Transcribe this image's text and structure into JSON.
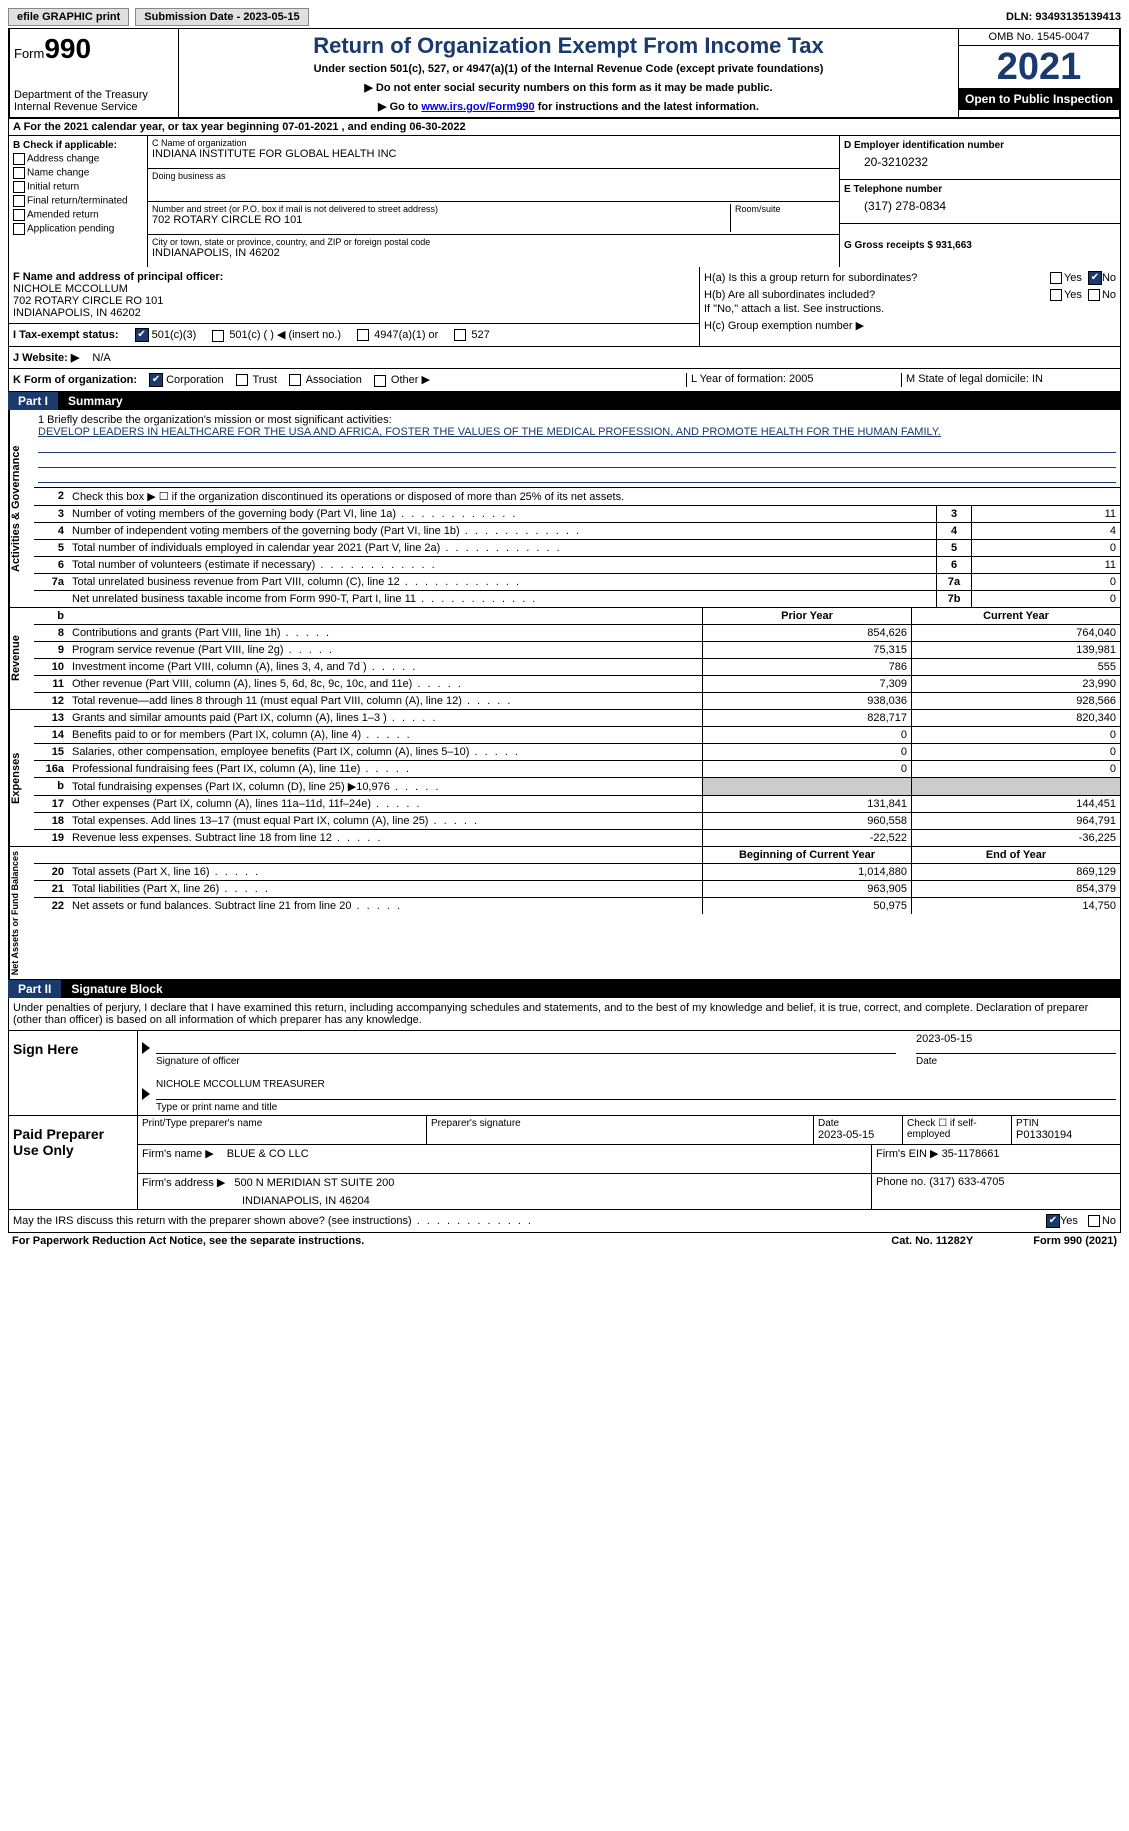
{
  "topbar": {
    "efile_label": "efile GRAPHIC print",
    "submission_label": "Submission Date - 2023-05-15",
    "dln_label": "DLN: 93493135139413"
  },
  "header": {
    "form_prefix": "Form",
    "form_number": "990",
    "dept": "Department of the Treasury Internal Revenue Service",
    "title": "Return of Organization Exempt From Income Tax",
    "subtitle1": "Under section 501(c), 527, or 4947(a)(1) of the Internal Revenue Code (except private foundations)",
    "subtitle2": "▶ Do not enter social security numbers on this form as it may be made public.",
    "subtitle3_pre": "▶ Go to ",
    "subtitle3_link": "www.irs.gov/Form990",
    "subtitle3_post": " for instructions and the latest information.",
    "omb": "OMB No. 1545-0047",
    "year": "2021",
    "inspection": "Open to Public Inspection"
  },
  "row_a": {
    "text": "A For the 2021 calendar year, or tax year beginning 07-01-2021    , and ending 06-30-2022"
  },
  "col_b": {
    "header": "B Check if applicable:",
    "items": [
      "Address change",
      "Name change",
      "Initial return",
      "Final return/terminated",
      "Amended return",
      "Application pending"
    ]
  },
  "col_c": {
    "name_label": "C Name of organization",
    "name_value": "INDIANA INSTITUTE FOR GLOBAL HEALTH INC",
    "dba_label": "Doing business as",
    "addr_label": "Number and street (or P.O. box if mail is not delivered to street address)",
    "addr_value": "702 ROTARY CIRCLE RO 101",
    "room_label": "Room/suite",
    "city_label": "City or town, state or province, country, and ZIP or foreign postal code",
    "city_value": "INDIANAPOLIS, IN  46202"
  },
  "col_d": {
    "ein_label": "D Employer identification number",
    "ein_value": "20-3210232",
    "phone_label": "E Telephone number",
    "phone_value": "(317) 278-0834",
    "gross_label": "G Gross receipts $ 931,663"
  },
  "f_block": {
    "f_label": "F Name and address of principal officer:",
    "f_name": "NICHOLE MCCOLLUM",
    "f_addr1": "702 ROTARY CIRCLE RO 101",
    "f_addr2": "INDIANAPOLIS, IN  46202",
    "i_label": "I   Tax-exempt status:",
    "i_501c3": "501(c)(3)",
    "i_501c": "501(c) (  ) ◀ (insert no.)",
    "i_4947": "4947(a)(1) or",
    "i_527": "527",
    "j_label": "J   Website: ▶",
    "j_value": "N/A"
  },
  "h_block": {
    "ha_label": "H(a)  Is this a group return for subordinates?",
    "hb_label": "H(b)  Are all subordinates included?",
    "hb_note": "If \"No,\" attach a list. See instructions.",
    "hc_label": "H(c)  Group exemption number ▶",
    "yes": "Yes",
    "no": "No"
  },
  "k_row": {
    "k_label": "K Form of organization:",
    "corp": "Corporation",
    "trust": "Trust",
    "assoc": "Association",
    "other": "Other ▶",
    "l_label": "L Year of formation: 2005",
    "m_label": "M State of legal domicile: IN"
  },
  "part1": {
    "num": "Part I",
    "title": "Summary"
  },
  "summary": {
    "line1_label": "1   Briefly describe the organization's mission or most significant activities:",
    "line1_text": "DEVELOP LEADERS IN HEALTHCARE FOR THE USA AND AFRICA, FOSTER THE VALUES OF THE MEDICAL PROFESSION, AND PROMOTE HEALTH FOR THE HUMAN FAMILY.",
    "line2": "Check this box ▶ ☐  if the organization discontinued its operations or disposed of more than 25% of its net assets.",
    "sections": {
      "governance": "Activities & Governance",
      "revenue": "Revenue",
      "expenses": "Expenses",
      "netassets": "Net Assets or Fund Balances"
    },
    "rows_top": [
      {
        "n": "3",
        "t": "Number of voting members of the governing body (Part VI, line 1a)",
        "b": "3",
        "v": "11"
      },
      {
        "n": "4",
        "t": "Number of independent voting members of the governing body (Part VI, line 1b)",
        "b": "4",
        "v": "4"
      },
      {
        "n": "5",
        "t": "Total number of individuals employed in calendar year 2021 (Part V, line 2a)",
        "b": "5",
        "v": "0"
      },
      {
        "n": "6",
        "t": "Total number of volunteers (estimate if necessary)",
        "b": "6",
        "v": "11"
      },
      {
        "n": "7a",
        "t": "Total unrelated business revenue from Part VIII, column (C), line 12",
        "b": "7a",
        "v": "0"
      },
      {
        "n": "",
        "t": "Net unrelated business taxable income from Form 990-T, Part I, line 11",
        "b": "7b",
        "v": "0"
      }
    ],
    "col_headers": {
      "b": "b",
      "prior": "Prior Year",
      "current": "Current Year"
    },
    "rows_rev": [
      {
        "n": "8",
        "t": "Contributions and grants (Part VIII, line 1h)",
        "p": "854,626",
        "c": "764,040"
      },
      {
        "n": "9",
        "t": "Program service revenue (Part VIII, line 2g)",
        "p": "75,315",
        "c": "139,981"
      },
      {
        "n": "10",
        "t": "Investment income (Part VIII, column (A), lines 3, 4, and 7d )",
        "p": "786",
        "c": "555"
      },
      {
        "n": "11",
        "t": "Other revenue (Part VIII, column (A), lines 5, 6d, 8c, 9c, 10c, and 11e)",
        "p": "7,309",
        "c": "23,990"
      },
      {
        "n": "12",
        "t": "Total revenue—add lines 8 through 11 (must equal Part VIII, column (A), line 12)",
        "p": "938,036",
        "c": "928,566"
      }
    ],
    "rows_exp": [
      {
        "n": "13",
        "t": "Grants and similar amounts paid (Part IX, column (A), lines 1–3 )",
        "p": "828,717",
        "c": "820,340"
      },
      {
        "n": "14",
        "t": "Benefits paid to or for members (Part IX, column (A), line 4)",
        "p": "0",
        "c": "0"
      },
      {
        "n": "15",
        "t": "Salaries, other compensation, employee benefits (Part IX, column (A), lines 5–10)",
        "p": "0",
        "c": "0"
      },
      {
        "n": "16a",
        "t": "Professional fundraising fees (Part IX, column (A), line 11e)",
        "p": "0",
        "c": "0"
      },
      {
        "n": "b",
        "t": "Total fundraising expenses (Part IX, column (D), line 25) ▶10,976",
        "p": "",
        "c": "",
        "shaded": true
      },
      {
        "n": "17",
        "t": "Other expenses (Part IX, column (A), lines 11a–11d, 11f–24e)",
        "p": "131,841",
        "c": "144,451"
      },
      {
        "n": "18",
        "t": "Total expenses. Add lines 13–17 (must equal Part IX, column (A), line 25)",
        "p": "960,558",
        "c": "964,791"
      },
      {
        "n": "19",
        "t": "Revenue less expenses. Subtract line 18 from line 12",
        "p": "-22,522",
        "c": "-36,225"
      }
    ],
    "col_headers2": {
      "prior": "Beginning of Current Year",
      "current": "End of Year"
    },
    "rows_net": [
      {
        "n": "20",
        "t": "Total assets (Part X, line 16)",
        "p": "1,014,880",
        "c": "869,129"
      },
      {
        "n": "21",
        "t": "Total liabilities (Part X, line 26)",
        "p": "963,905",
        "c": "854,379"
      },
      {
        "n": "22",
        "t": "Net assets or fund balances. Subtract line 21 from line 20",
        "p": "50,975",
        "c": "14,750"
      }
    ]
  },
  "part2": {
    "num": "Part II",
    "title": "Signature Block"
  },
  "sig": {
    "declaration": "Under penalties of perjury, I declare that I have examined this return, including accompanying schedules and statements, and to the best of my knowledge and belief, it is true, correct, and complete. Declaration of preparer (other than officer) is based on all information of which preparer has any knowledge.",
    "sign_here": "Sign Here",
    "sig_officer": "Signature of officer",
    "sig_date": "2023-05-15",
    "date_label": "Date",
    "name_title": "NICHOLE MCCOLLUM  TREASURER",
    "type_label": "Type or print name and title"
  },
  "preparer": {
    "label": "Paid Preparer Use Only",
    "print_name_label": "Print/Type preparer's name",
    "sig_label": "Preparer's signature",
    "date_label": "Date",
    "date_value": "2023-05-15",
    "check_label": "Check ☐ if self-employed",
    "ptin_label": "PTIN",
    "ptin_value": "P01330194",
    "firm_name_label": "Firm's name    ▶",
    "firm_name": "BLUE & CO LLC",
    "firm_ein_label": "Firm's EIN ▶",
    "firm_ein": "35-1178661",
    "firm_addr_label": "Firm's address ▶",
    "firm_addr1": "500 N MERIDIAN ST SUITE 200",
    "firm_addr2": "INDIANAPOLIS, IN  46204",
    "phone_label": "Phone no.",
    "phone": "(317) 633-4705"
  },
  "footer": {
    "discuss": "May the IRS discuss this return with the preparer shown above? (see instructions)",
    "yes": "Yes",
    "no": "No",
    "paperwork": "For Paperwork Reduction Act Notice, see the separate instructions.",
    "cat": "Cat. No. 11282Y",
    "form": "Form 990 (2021)"
  }
}
